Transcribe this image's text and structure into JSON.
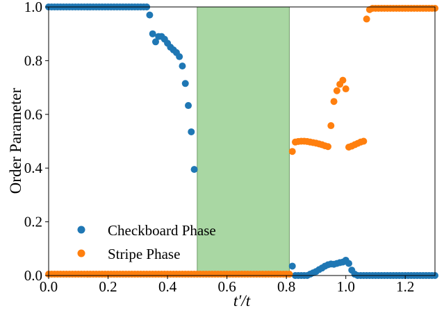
{
  "chart_data": {
    "type": "scatter",
    "xlabel": "t′/t",
    "ylabel": "Order Parameter",
    "xlim": [
      0.0,
      1.3
    ],
    "ylim": [
      0.0,
      1.0
    ],
    "grid": false,
    "legend_position": "lower-left",
    "x_ticks": [
      "0.0",
      "0.2",
      "0.4",
      "0.6",
      "0.8",
      "1.0",
      "1.2"
    ],
    "y_ticks": [
      "0.0",
      "0.2",
      "0.4",
      "0.6",
      "0.8",
      "1.0"
    ],
    "shaded_region": {
      "x": [
        0.5,
        0.81
      ],
      "color": "#a9d7a3"
    },
    "series": [
      {
        "name": "Checkboard Phase",
        "color": "#1f77b4",
        "points": [
          [
            0.0,
            1.0
          ],
          [
            0.01,
            1.0
          ],
          [
            0.02,
            1.0
          ],
          [
            0.03,
            1.0
          ],
          [
            0.04,
            1.0
          ],
          [
            0.05,
            1.0
          ],
          [
            0.06,
            1.0
          ],
          [
            0.07,
            1.0
          ],
          [
            0.08,
            1.0
          ],
          [
            0.09,
            1.0
          ],
          [
            0.1,
            1.0
          ],
          [
            0.11,
            1.0
          ],
          [
            0.12,
            1.0
          ],
          [
            0.13,
            1.0
          ],
          [
            0.14,
            1.0
          ],
          [
            0.15,
            1.0
          ],
          [
            0.16,
            1.0
          ],
          [
            0.17,
            1.0
          ],
          [
            0.18,
            1.0
          ],
          [
            0.19,
            1.0
          ],
          [
            0.2,
            1.0
          ],
          [
            0.21,
            1.0
          ],
          [
            0.22,
            1.0
          ],
          [
            0.23,
            1.0
          ],
          [
            0.24,
            1.0
          ],
          [
            0.25,
            1.0
          ],
          [
            0.26,
            1.0
          ],
          [
            0.27,
            1.0
          ],
          [
            0.28,
            1.0
          ],
          [
            0.29,
            1.0
          ],
          [
            0.3,
            1.0
          ],
          [
            0.31,
            1.0
          ],
          [
            0.32,
            1.0
          ],
          [
            0.33,
            1.0
          ],
          [
            0.34,
            0.97
          ],
          [
            0.35,
            0.9
          ],
          [
            0.36,
            0.87
          ],
          [
            0.37,
            0.89
          ],
          [
            0.38,
            0.89
          ],
          [
            0.39,
            0.88
          ],
          [
            0.4,
            0.865
          ],
          [
            0.41,
            0.85
          ],
          [
            0.42,
            0.84
          ],
          [
            0.43,
            0.83
          ],
          [
            0.44,
            0.815
          ],
          [
            0.45,
            0.78
          ],
          [
            0.46,
            0.715
          ],
          [
            0.47,
            0.633
          ],
          [
            0.48,
            0.535
          ],
          [
            0.49,
            0.395
          ],
          [
            0.82,
            0.035
          ],
          [
            0.83,
            0.0
          ],
          [
            0.84,
            0.0
          ],
          [
            0.85,
            0.0
          ],
          [
            0.86,
            0.0
          ],
          [
            0.87,
            0.0
          ],
          [
            0.88,
            0.005
          ],
          [
            0.89,
            0.01
          ],
          [
            0.9,
            0.015
          ],
          [
            0.91,
            0.022
          ],
          [
            0.92,
            0.028
          ],
          [
            0.93,
            0.035
          ],
          [
            0.94,
            0.04
          ],
          [
            0.95,
            0.043
          ],
          [
            0.96,
            0.042
          ],
          [
            0.97,
            0.045
          ],
          [
            0.98,
            0.048
          ],
          [
            0.99,
            0.05
          ],
          [
            1.0,
            0.057
          ],
          [
            1.01,
            0.045
          ],
          [
            1.02,
            0.02
          ],
          [
            1.03,
            0.005
          ],
          [
            1.04,
            0.0
          ],
          [
            1.05,
            0.0
          ],
          [
            1.06,
            0.0
          ],
          [
            1.07,
            0.0
          ],
          [
            1.08,
            0.0
          ],
          [
            1.09,
            0.0
          ],
          [
            1.1,
            0.0
          ],
          [
            1.11,
            0.0
          ],
          [
            1.12,
            0.0
          ],
          [
            1.13,
            0.0
          ],
          [
            1.14,
            0.0
          ],
          [
            1.15,
            0.0
          ],
          [
            1.16,
            0.0
          ],
          [
            1.17,
            0.0
          ],
          [
            1.18,
            0.0
          ],
          [
            1.19,
            0.0
          ],
          [
            1.2,
            0.0
          ],
          [
            1.21,
            0.0
          ],
          [
            1.22,
            0.0
          ],
          [
            1.23,
            0.0
          ],
          [
            1.24,
            0.0
          ],
          [
            1.25,
            0.0
          ],
          [
            1.26,
            0.0
          ],
          [
            1.27,
            0.0
          ],
          [
            1.28,
            0.0
          ],
          [
            1.29,
            0.0
          ],
          [
            1.3,
            0.0
          ]
        ]
      },
      {
        "name": "Stripe Phase",
        "color": "#ff7f0e",
        "points": [
          [
            0.0,
            0.005
          ],
          [
            0.01,
            0.005
          ],
          [
            0.02,
            0.005
          ],
          [
            0.03,
            0.005
          ],
          [
            0.04,
            0.005
          ],
          [
            0.05,
            0.005
          ],
          [
            0.06,
            0.005
          ],
          [
            0.07,
            0.005
          ],
          [
            0.08,
            0.005
          ],
          [
            0.09,
            0.005
          ],
          [
            0.1,
            0.005
          ],
          [
            0.11,
            0.005
          ],
          [
            0.12,
            0.005
          ],
          [
            0.13,
            0.005
          ],
          [
            0.14,
            0.005
          ],
          [
            0.15,
            0.005
          ],
          [
            0.16,
            0.005
          ],
          [
            0.17,
            0.005
          ],
          [
            0.18,
            0.005
          ],
          [
            0.19,
            0.005
          ],
          [
            0.2,
            0.005
          ],
          [
            0.21,
            0.005
          ],
          [
            0.22,
            0.005
          ],
          [
            0.23,
            0.005
          ],
          [
            0.24,
            0.005
          ],
          [
            0.25,
            0.005
          ],
          [
            0.26,
            0.005
          ],
          [
            0.27,
            0.005
          ],
          [
            0.28,
            0.005
          ],
          [
            0.29,
            0.005
          ],
          [
            0.3,
            0.005
          ],
          [
            0.31,
            0.005
          ],
          [
            0.32,
            0.005
          ],
          [
            0.33,
            0.005
          ],
          [
            0.34,
            0.005
          ],
          [
            0.35,
            0.005
          ],
          [
            0.36,
            0.005
          ],
          [
            0.37,
            0.005
          ],
          [
            0.38,
            0.005
          ],
          [
            0.39,
            0.005
          ],
          [
            0.4,
            0.005
          ],
          [
            0.41,
            0.005
          ],
          [
            0.42,
            0.005
          ],
          [
            0.43,
            0.005
          ],
          [
            0.44,
            0.005
          ],
          [
            0.45,
            0.005
          ],
          [
            0.46,
            0.005
          ],
          [
            0.47,
            0.005
          ],
          [
            0.48,
            0.005
          ],
          [
            0.49,
            0.005
          ],
          [
            0.5,
            0.005
          ],
          [
            0.51,
            0.005
          ],
          [
            0.52,
            0.005
          ],
          [
            0.53,
            0.005
          ],
          [
            0.54,
            0.005
          ],
          [
            0.55,
            0.005
          ],
          [
            0.56,
            0.005
          ],
          [
            0.57,
            0.005
          ],
          [
            0.58,
            0.005
          ],
          [
            0.59,
            0.005
          ],
          [
            0.6,
            0.005
          ],
          [
            0.61,
            0.005
          ],
          [
            0.62,
            0.005
          ],
          [
            0.63,
            0.005
          ],
          [
            0.64,
            0.005
          ],
          [
            0.65,
            0.005
          ],
          [
            0.66,
            0.005
          ],
          [
            0.67,
            0.005
          ],
          [
            0.68,
            0.005
          ],
          [
            0.69,
            0.005
          ],
          [
            0.7,
            0.005
          ],
          [
            0.71,
            0.005
          ],
          [
            0.72,
            0.005
          ],
          [
            0.73,
            0.005
          ],
          [
            0.74,
            0.005
          ],
          [
            0.75,
            0.005
          ],
          [
            0.76,
            0.005
          ],
          [
            0.77,
            0.005
          ],
          [
            0.78,
            0.005
          ],
          [
            0.79,
            0.005
          ],
          [
            0.8,
            0.005
          ],
          [
            0.81,
            0.005
          ],
          [
            0.82,
            0.462
          ],
          [
            0.83,
            0.497
          ],
          [
            0.84,
            0.499
          ],
          [
            0.85,
            0.5
          ],
          [
            0.86,
            0.5
          ],
          [
            0.87,
            0.499
          ],
          [
            0.88,
            0.497
          ],
          [
            0.89,
            0.495
          ],
          [
            0.9,
            0.493
          ],
          [
            0.91,
            0.49
          ],
          [
            0.92,
            0.487
          ],
          [
            0.93,
            0.483
          ],
          [
            0.94,
            0.48
          ],
          [
            0.95,
            0.558
          ],
          [
            0.96,
            0.648
          ],
          [
            0.97,
            0.688
          ],
          [
            0.98,
            0.712
          ],
          [
            0.99,
            0.727
          ],
          [
            1.0,
            0.695
          ],
          [
            1.01,
            0.478
          ],
          [
            1.02,
            0.482
          ],
          [
            1.03,
            0.487
          ],
          [
            1.04,
            0.492
          ],
          [
            1.05,
            0.497
          ],
          [
            1.06,
            0.5
          ],
          [
            1.07,
            0.955
          ],
          [
            1.08,
            0.99
          ],
          [
            1.09,
            0.995
          ],
          [
            1.1,
            0.995
          ],
          [
            1.11,
            0.995
          ],
          [
            1.12,
            0.995
          ],
          [
            1.13,
            0.995
          ],
          [
            1.14,
            0.995
          ],
          [
            1.15,
            0.995
          ],
          [
            1.16,
            0.995
          ],
          [
            1.17,
            0.995
          ],
          [
            1.18,
            0.995
          ],
          [
            1.19,
            0.995
          ],
          [
            1.2,
            0.995
          ],
          [
            1.21,
            0.995
          ],
          [
            1.22,
            0.995
          ],
          [
            1.23,
            0.995
          ],
          [
            1.24,
            0.995
          ],
          [
            1.25,
            0.995
          ],
          [
            1.26,
            0.995
          ],
          [
            1.27,
            0.995
          ],
          [
            1.28,
            0.995
          ],
          [
            1.29,
            0.995
          ],
          [
            1.3,
            0.995
          ]
        ]
      }
    ]
  }
}
